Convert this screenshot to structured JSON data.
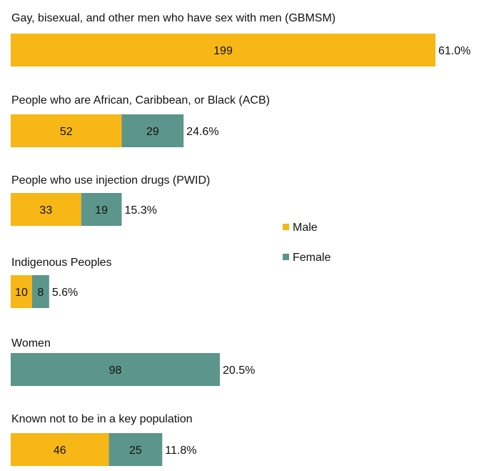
{
  "chart_data": {
    "type": "bar",
    "orientation": "horizontal",
    "stacked": true,
    "legend_position": "right",
    "grid": false,
    "categories": [
      "Gay, bisexual, and other men who have sex with men (GBMSM)",
      "People who are African, Caribbean, or Black (ACB)",
      "People who use injection drugs (PWID)",
      "Indigenous Peoples",
      "Women",
      "Known not to be in a key population"
    ],
    "series": [
      {
        "name": "Male",
        "color": "#f7b717",
        "values": [
          199,
          52,
          33,
          10,
          0,
          46
        ]
      },
      {
        "name": "Female",
        "color": "#5c958b",
        "values": [
          0,
          29,
          19,
          8,
          98,
          25
        ]
      }
    ],
    "percent_labels": [
      "61.0%",
      "24.6%",
      "15.3%",
      "5.6%",
      "20.5%",
      "11.8%"
    ]
  }
}
